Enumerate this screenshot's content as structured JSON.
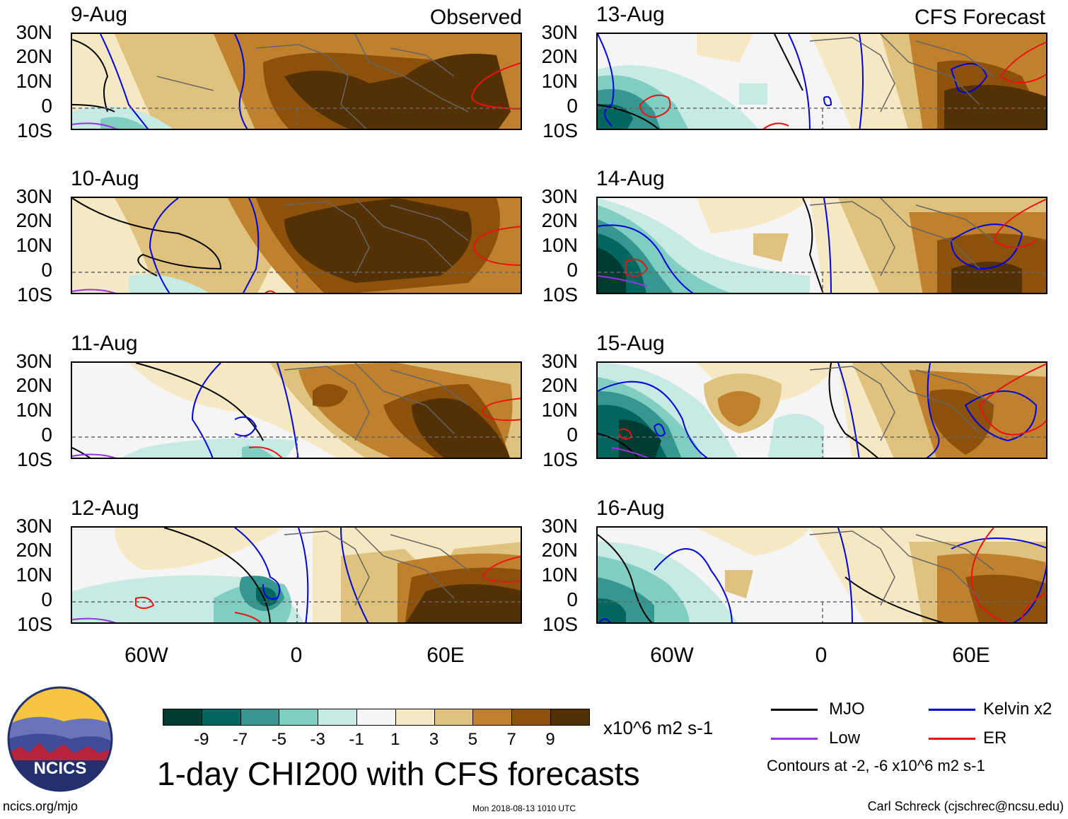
{
  "header": {
    "observed_label": "Observed",
    "forecast_label": "CFS Forecast"
  },
  "lat_labels": [
    "30N",
    "20N",
    "10N",
    "0",
    "10S"
  ],
  "lon_labels": [
    "60W",
    "0",
    "60E"
  ],
  "panels_left": [
    {
      "date": "9-Aug"
    },
    {
      "date": "10-Aug"
    },
    {
      "date": "11-Aug"
    },
    {
      "date": "12-Aug"
    }
  ],
  "panels_right": [
    {
      "date": "13-Aug"
    },
    {
      "date": "14-Aug"
    },
    {
      "date": "15-Aug"
    },
    {
      "date": "16-Aug"
    }
  ],
  "colorbar": {
    "labels": [
      "-9",
      "-7",
      "-5",
      "-3",
      "-1",
      "1",
      "3",
      "5",
      "7",
      "9"
    ],
    "units": "x10^6 m2 s-1",
    "colors": [
      "#003c30",
      "#01665e",
      "#35978f",
      "#80cdc1",
      "#c7eae5",
      "#f5f5f5",
      "#f6e8c3",
      "#dfc27d",
      "#bf812d",
      "#8c510a",
      "#543005"
    ]
  },
  "title": "1-day CHI200 with CFS forecasts",
  "legend": {
    "mjo": "MJO",
    "kelvin": "Kelvin x2",
    "low": "Low",
    "er": "ER",
    "contours_note": "Contours at -2, -6 x10^6 m2 s-1",
    "colors": {
      "mjo": "#000000",
      "kelvin": "#0000dd",
      "low": "#9933dd",
      "er": "#ee1111"
    }
  },
  "logo": {
    "text": "NCICS"
  },
  "footer": {
    "url": "ncics.org/mjo",
    "timestamp": "Mon 2018-08-13 1010 UTC",
    "author": "Carl Schreck (cjschrec@ncsu.edu)"
  }
}
